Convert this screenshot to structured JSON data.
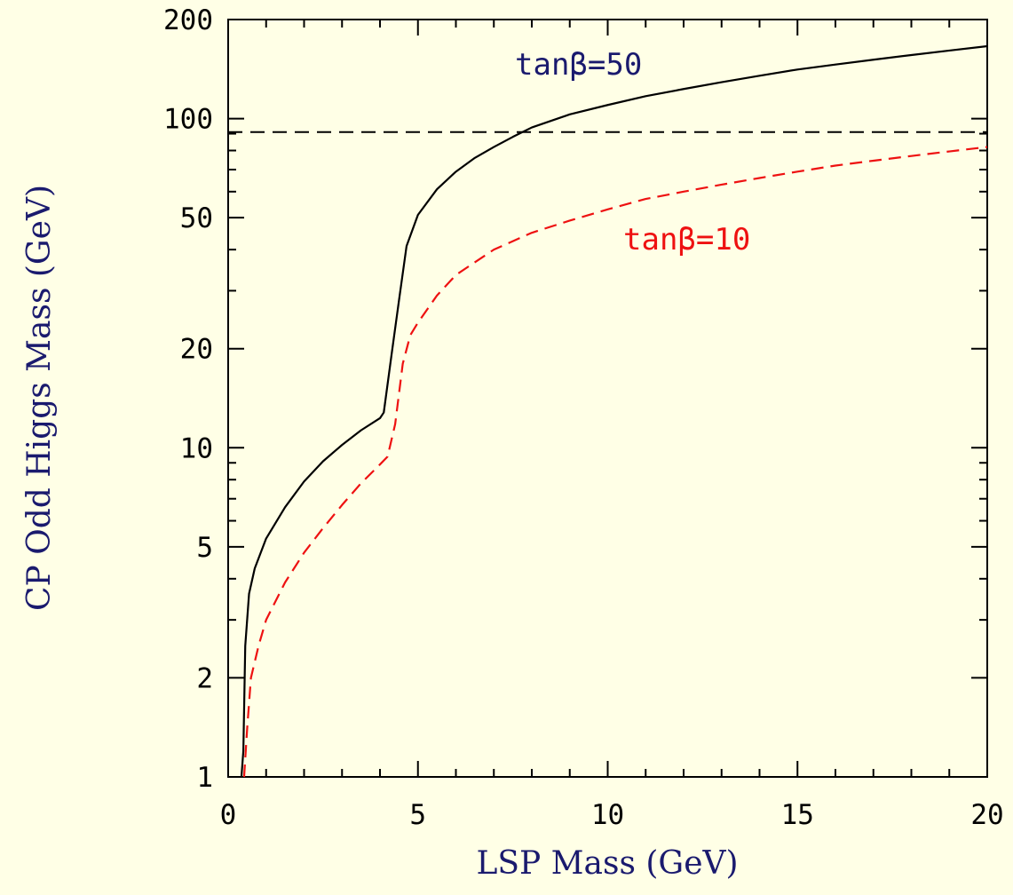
{
  "chart_data": {
    "type": "line",
    "xlabel": "LSP Mass (GeV)",
    "ylabel": "CP Odd Higgs Mass (GeV)",
    "xlim": [
      0,
      20
    ],
    "ylim": [
      1,
      200
    ],
    "yscale": "log",
    "grid": false,
    "x_ticks": [
      "0",
      "5",
      "10",
      "15",
      "20"
    ],
    "y_ticks": [
      "1",
      "2",
      "5",
      "10",
      "20",
      "50",
      "100",
      "200"
    ],
    "colors": {
      "background": "#ffffe6",
      "axis_title": "#1a1a6e",
      "reference_line": "#000000"
    },
    "reference_line": {
      "y": 91,
      "style": "dashed"
    },
    "series": [
      {
        "name": "tanβ=50",
        "label_text": "tanβ=50",
        "color": "#000000",
        "label_color": "#1a1a6e",
        "style": "solid",
        "points": [
          [
            0.35,
            1.0
          ],
          [
            0.4,
            1.2
          ],
          [
            0.45,
            2.5
          ],
          [
            0.55,
            3.6
          ],
          [
            0.7,
            4.3
          ],
          [
            1.0,
            5.3
          ],
          [
            1.5,
            6.6
          ],
          [
            2.0,
            7.9
          ],
          [
            2.5,
            9.1
          ],
          [
            3.0,
            10.2
          ],
          [
            3.5,
            11.3
          ],
          [
            4.0,
            12.3
          ],
          [
            4.1,
            12.8
          ],
          [
            4.3,
            19.0
          ],
          [
            4.5,
            28.0
          ],
          [
            4.7,
            41.0
          ],
          [
            5.0,
            51.0
          ],
          [
            5.5,
            61.0
          ],
          [
            6.0,
            69.0
          ],
          [
            6.5,
            76.0
          ],
          [
            7.0,
            82.0
          ],
          [
            7.5,
            88.0
          ],
          [
            8.0,
            94.0
          ],
          [
            9.0,
            103.0
          ],
          [
            10.0,
            110.0
          ],
          [
            11.0,
            117.0
          ],
          [
            12.0,
            123.0
          ],
          [
            13.0,
            129.0
          ],
          [
            14.0,
            135.0
          ],
          [
            15.0,
            141.0
          ],
          [
            16.0,
            146.0
          ],
          [
            17.0,
            151.0
          ],
          [
            18.0,
            156.0
          ],
          [
            19.0,
            161.0
          ],
          [
            20.0,
            166.0
          ]
        ]
      },
      {
        "name": "tanβ=10",
        "label_text": "tanβ=10",
        "color": "#ee1111",
        "label_color": "#ee1111",
        "style": "dashed",
        "points": [
          [
            0.42,
            1.0
          ],
          [
            0.5,
            1.4
          ],
          [
            0.6,
            2.0
          ],
          [
            0.8,
            2.5
          ],
          [
            1.0,
            3.0
          ],
          [
            1.5,
            3.9
          ],
          [
            2.0,
            4.8
          ],
          [
            2.5,
            5.7
          ],
          [
            3.0,
            6.7
          ],
          [
            3.5,
            7.8
          ],
          [
            4.0,
            8.9
          ],
          [
            4.2,
            9.4
          ],
          [
            4.4,
            11.8
          ],
          [
            4.6,
            18.0
          ],
          [
            4.8,
            22.0
          ],
          [
            5.0,
            24.0
          ],
          [
            5.5,
            29.0
          ],
          [
            6.0,
            33.5
          ],
          [
            7.0,
            40.0
          ],
          [
            8.0,
            45.0
          ],
          [
            9.0,
            49.0
          ],
          [
            10.0,
            53.0
          ],
          [
            11.0,
            57.0
          ],
          [
            12.0,
            60.0
          ],
          [
            13.0,
            63.0
          ],
          [
            14.0,
            66.0
          ],
          [
            15.0,
            69.0
          ],
          [
            16.0,
            72.0
          ],
          [
            17.0,
            74.5
          ],
          [
            18.0,
            77.0
          ],
          [
            19.0,
            79.5
          ],
          [
            20.0,
            82.0
          ]
        ]
      }
    ]
  }
}
